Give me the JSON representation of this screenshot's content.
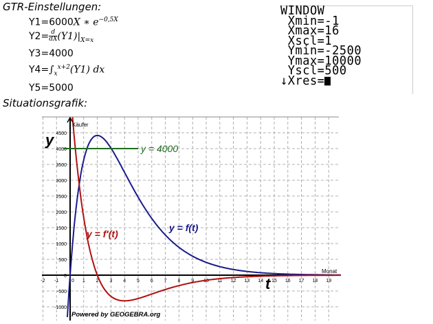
{
  "gtr_settings": {
    "heading": "GTR-Einstellungen:",
    "equations": [
      {
        "label": "Y1=",
        "expr": "6000X * e^(−0,5X)",
        "base": "6000",
        "var": "X",
        "op": " ∗ ",
        "e": "e",
        "exp": "−0,5X"
      },
      {
        "label": "Y2=",
        "expr": "d/dX (Y1)|X=x",
        "frac_num": "d",
        "frac_den": "dX",
        "body": "(Y1)|",
        "sub": "X=x"
      },
      {
        "label": "Y3=",
        "expr": "4000",
        "value": "4000"
      },
      {
        "label": "Y4=",
        "expr": "∫_x^{x+2}(Y1) dx",
        "int": "∫",
        "upper": "x+2",
        "lower": "x",
        "body": "(Y1) dx"
      },
      {
        "label": "Y5=",
        "expr": "5000",
        "value": "5000"
      }
    ]
  },
  "calculator_window": {
    "lines": [
      "WINDOW",
      " Xmin=-1",
      " Xmax=16",
      " Xscl=1",
      " Ymin=-2500",
      " Ymax=10000",
      " Yscl=500",
      "↓Xres="
    ],
    "cursor": "block-cursor"
  },
  "situation": {
    "heading": "Situationsgrafik:"
  },
  "chart_data": {
    "type": "line",
    "title": "Situationsgrafik",
    "xlabel": "t",
    "xlabel_unit": "Monat",
    "ylabel": "y",
    "ylabel_unit": "Käufer",
    "xlim": [
      -2,
      20
    ],
    "ylim": [
      -1100,
      5000
    ],
    "grid": true,
    "x_ticks": [
      -2,
      -1,
      0,
      1,
      2,
      3,
      4,
      5,
      6,
      7,
      8,
      9,
      10,
      11,
      12,
      13,
      14,
      15,
      16,
      17,
      18,
      19
    ],
    "y_ticks": [
      -1000,
      -500,
      0,
      500,
      1000,
      1500,
      2000,
      2500,
      3000,
      3500,
      4000,
      4500
    ],
    "series": [
      {
        "name": "y = f(t)",
        "formula": "6000*t*exp(-0.5*t)",
        "color": "#1a1a8c",
        "x": [
          0,
          1,
          2,
          3,
          4,
          5,
          6,
          8,
          10,
          12,
          14,
          16,
          19
        ],
        "values": [
          0,
          3639,
          4415,
          4016,
          3248,
          2462,
          1792,
          879,
          404,
          178,
          77,
          32,
          6
        ]
      },
      {
        "name": "y = f'(t)",
        "formula": "6000*exp(-0.5*t)*(1-0.5*t)",
        "color": "#b01010",
        "x": [
          0,
          0.5,
          1,
          2,
          3,
          4,
          5,
          6,
          8,
          10,
          12,
          14,
          16,
          19
        ],
        "values": [
          6000,
          3505,
          1820,
          0,
          -669,
          -812,
          -739,
          -597,
          -330,
          -162,
          -74,
          -33,
          -14,
          -3
        ]
      },
      {
        "name": "y = 4000",
        "color": "#1e6b1e",
        "x": [
          -0.5,
          5
        ],
        "values": [
          4000,
          4000
        ]
      }
    ],
    "annotations": [
      "y = 4000",
      "y = f(t)",
      "y = f'(t)",
      "Powered by GEOGEBRA.org"
    ],
    "labels": {
      "y4000": "y = 4000",
      "ft": "y = f(t)",
      "fpt": "y = f′(t)",
      "y_axis": "y",
      "x_axis": "t",
      "y_unit": "Käufer",
      "x_unit": "Monat",
      "powered": "Powered by GEOGEBRA.org"
    }
  }
}
